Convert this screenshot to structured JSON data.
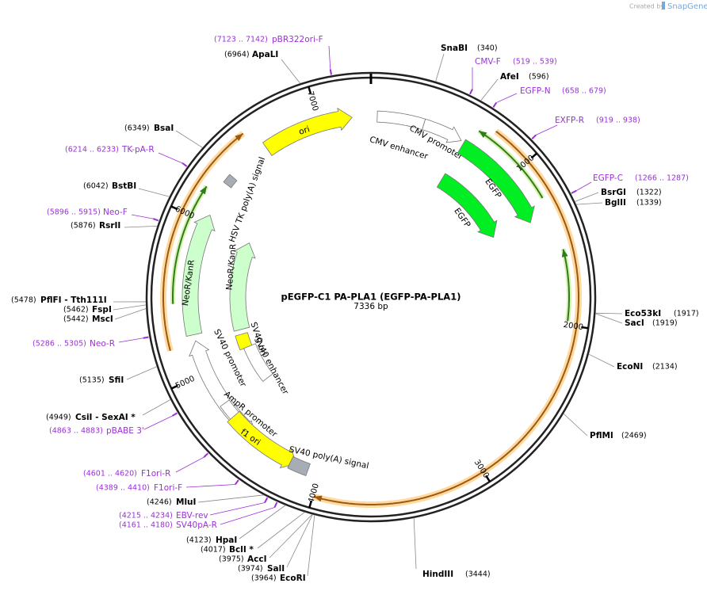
{
  "watermark": {
    "prefix": "Created by",
    "brand": "SnapGene"
  },
  "plasmid": {
    "name": "pEGFP-C1 PA-PLA1 (EGFP-PA-PLA1)",
    "size": "7336 bp"
  },
  "ticks": [
    1000,
    2000,
    3000,
    4000,
    5000,
    6000,
    7000
  ],
  "sites": [
    {
      "name": "SnaBI",
      "position": "(340)"
    },
    {
      "name": "AfeI",
      "position": "(596)"
    },
    {
      "name": "BsrGI",
      "position": "(1322)"
    },
    {
      "name": "BglII",
      "position": "(1339)"
    },
    {
      "name": "Eco53kI",
      "position": "(1917)"
    },
    {
      "name": "SacI",
      "position": "(1919)"
    },
    {
      "name": "EcoNI",
      "position": "(2134)"
    },
    {
      "name": "PflMI",
      "position": "(2469)"
    },
    {
      "name": "HindIII",
      "position": "(3444)"
    },
    {
      "name": "ApaLI",
      "position": "(6964)"
    },
    {
      "name": "BsaI",
      "position": "(6349)"
    },
    {
      "name": "BstBI",
      "position": "(6042)"
    },
    {
      "name": "RsrII",
      "position": "(5876)"
    },
    {
      "name": "PflFI - Tth111I",
      "position": "(5478)"
    },
    {
      "name": "FspI",
      "position": "(5462)"
    },
    {
      "name": "MscI",
      "position": "(5442)"
    },
    {
      "name": "SfiI",
      "position": "(5135)"
    },
    {
      "name": "CsiI - SexAI *",
      "position": "(4949)"
    },
    {
      "name": "MluI",
      "position": "(4246)"
    },
    {
      "name": "HpaI",
      "position": "(4123)"
    },
    {
      "name": "BclI *",
      "position": "(4017)"
    },
    {
      "name": "AccI",
      "position": "(3975)"
    },
    {
      "name": "SalI",
      "position": "(3974)"
    },
    {
      "name": "EcoRI",
      "position": "(3964)"
    }
  ],
  "primers": [
    {
      "name": "pBR322ori-F",
      "range": "(7123 .. 7142)"
    },
    {
      "name": "CMV-F",
      "range": "(519 .. 539)"
    },
    {
      "name": "EGFP-N",
      "range": "(658 .. 679)"
    },
    {
      "name": "EXFP-R",
      "range": "(919 .. 938)"
    },
    {
      "name": "EGFP-C",
      "range": "(1266 .. 1287)"
    },
    {
      "name": "TK-pA-R",
      "range": "(6214 .. 6233)"
    },
    {
      "name": "Neo-F",
      "range": "(5896 .. 5915)"
    },
    {
      "name": "Neo-R",
      "range": "(5286 .. 5305)"
    },
    {
      "name": "pBABE 3'",
      "range": "(4863 .. 4883)"
    },
    {
      "name": "F1ori-R",
      "range": "(4601 .. 4620)"
    },
    {
      "name": "F1ori-F",
      "range": "(4389 .. 4410)"
    },
    {
      "name": "EBV-rev",
      "range": "(4215 .. 4234)"
    },
    {
      "name": "SV40pA-R",
      "range": "(4161 .. 4180)"
    }
  ],
  "features": [
    {
      "label": "ori"
    },
    {
      "label": "CMV enhancer"
    },
    {
      "label": "CMV promoter"
    },
    {
      "label": "EGFP"
    },
    {
      "label": "EGFP"
    },
    {
      "label": "HSV TK poly(A) signal"
    },
    {
      "label": "NeoR/KanR"
    },
    {
      "label": "NeoR/KanR"
    },
    {
      "label": "SV40 ori"
    },
    {
      "label": "SV40 enhancer"
    },
    {
      "label": "SV40 promoter"
    },
    {
      "label": "AmpR promoter"
    },
    {
      "label": "f1 ori"
    },
    {
      "label": "SV40 poly(A) signal"
    }
  ]
}
